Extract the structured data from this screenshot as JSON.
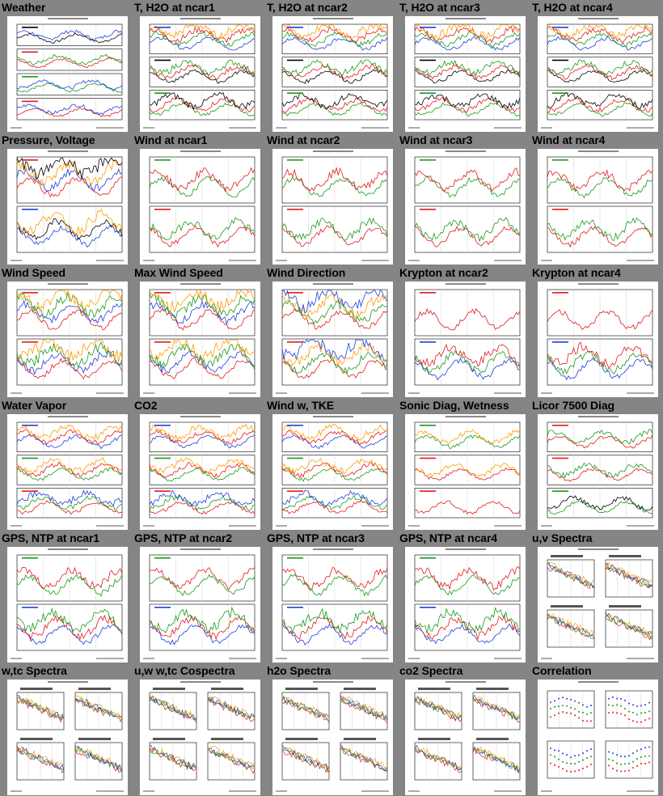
{
  "tiles": [
    {
      "title": "Weather",
      "kind": "weather"
    },
    {
      "title": "T, H2O at ncar1",
      "kind": "th2o"
    },
    {
      "title": "T, H2O at ncar2",
      "kind": "th2o"
    },
    {
      "title": "T, H2O at ncar3",
      "kind": "th2o"
    },
    {
      "title": "T, H2O at ncar4",
      "kind": "th2o"
    },
    {
      "title": "Pressure, Voltage",
      "kind": "pressure"
    },
    {
      "title": "Wind at ncar1",
      "kind": "wind"
    },
    {
      "title": "Wind at ncar2",
      "kind": "wind"
    },
    {
      "title": "Wind at ncar3",
      "kind": "wind"
    },
    {
      "title": "Wind at ncar4",
      "kind": "wind"
    },
    {
      "title": "Wind Speed",
      "kind": "windspeed"
    },
    {
      "title": "Max Wind Speed",
      "kind": "windspeed"
    },
    {
      "title": "Wind Direction",
      "kind": "winddir"
    },
    {
      "title": "Krypton at ncar2",
      "kind": "krypton"
    },
    {
      "title": "Krypton at ncar4",
      "kind": "krypton"
    },
    {
      "title": "Water Vapor",
      "kind": "three"
    },
    {
      "title": "CO2",
      "kind": "three"
    },
    {
      "title": "Wind w, TKE",
      "kind": "three"
    },
    {
      "title": "Sonic Diag, Wetness",
      "kind": "sonic"
    },
    {
      "title": "Licor 7500 Diag",
      "kind": "licor"
    },
    {
      "title": "GPS, NTP at ncar1",
      "kind": "gps"
    },
    {
      "title": "GPS, NTP at ncar2",
      "kind": "gps"
    },
    {
      "title": "GPS, NTP at ncar3",
      "kind": "gps"
    },
    {
      "title": "GPS, NTP at ncar4",
      "kind": "gps"
    },
    {
      "title": "u,v Spectra",
      "kind": "spectra"
    },
    {
      "title": "w,tc Spectra",
      "kind": "spectra"
    },
    {
      "title": "u,w w,tc Cospectra",
      "kind": "spectra"
    },
    {
      "title": "h2o Spectra",
      "kind": "spectra"
    },
    {
      "title": "co2 Spectra",
      "kind": "spectra"
    },
    {
      "title": "Correlation",
      "kind": "correlation"
    }
  ],
  "colors": {
    "background": "#858585",
    "red": "#e41a1c",
    "green": "#1a9a1a",
    "blue": "#1f3fd8",
    "orange": "#ff9d00",
    "black": "#000000"
  }
}
